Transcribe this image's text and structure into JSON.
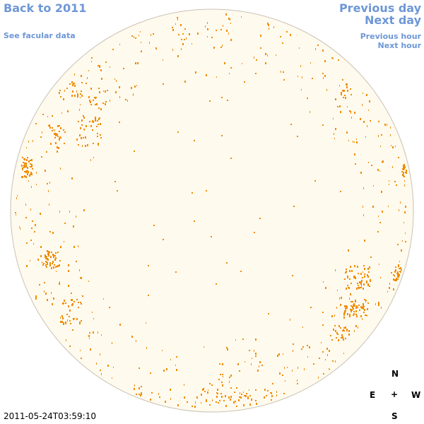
{
  "nav": {
    "back_label": "Back to 2011",
    "facular_label": "See facular data",
    "prev_day_label": "Previous day",
    "next_day_label": "Next day",
    "prev_hour_label": "Previous hour",
    "next_hour_label": "Next hour"
  },
  "compass": {
    "north": "N",
    "east": "E",
    "center": "+",
    "west": "W",
    "south": "S"
  },
  "timestamp": "2011-05-24T03:59:10",
  "colors": {
    "disk_fill": "#fffaee",
    "disk_border": "#c9c2b4",
    "facula": "#f08c00",
    "link": "#6e97d6"
  }
}
